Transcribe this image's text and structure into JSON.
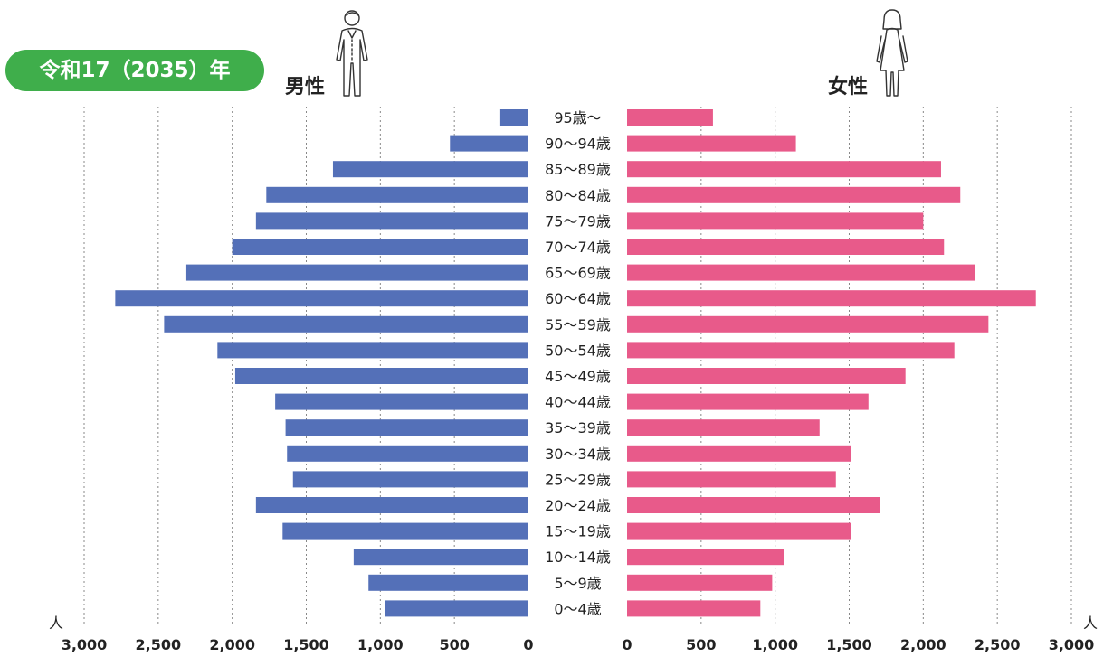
{
  "badge": "令和17（2035）年",
  "male_label": "男性",
  "female_label": "女性",
  "unit_left": "人",
  "unit_right": "人",
  "colors": {
    "male": "#5470b8",
    "female": "#e85a8a",
    "badge": "#3fae4b",
    "grid": "#888888"
  },
  "icons": {
    "male": "man-figure-icon",
    "female": "woman-figure-icon"
  },
  "chart_data": {
    "type": "bar",
    "orientation": "horizontal-population-pyramid",
    "categories": [
      "95歳〜",
      "90〜94歳",
      "85〜89歳",
      "80〜84歳",
      "75〜79歳",
      "70〜74歳",
      "65〜69歳",
      "60〜64歳",
      "55〜59歳",
      "50〜54歳",
      "45〜49歳",
      "40〜44歳",
      "35〜39歳",
      "30〜34歳",
      "25〜29歳",
      "20〜24歳",
      "15〜19歳",
      "10〜14歳",
      "5〜9歳",
      "0〜4歳"
    ],
    "series": [
      {
        "name": "男性",
        "values": [
          190,
          530,
          1320,
          1770,
          1840,
          2000,
          2310,
          2790,
          2460,
          2100,
          1980,
          1710,
          1640,
          1630,
          1590,
          1840,
          1660,
          1180,
          1080,
          970
        ]
      },
      {
        "name": "女性",
        "values": [
          580,
          1140,
          2120,
          2250,
          2000,
          2140,
          2350,
          2760,
          2440,
          2210,
          1880,
          1630,
          1300,
          1510,
          1410,
          1710,
          1510,
          1060,
          980,
          900
        ]
      }
    ],
    "xlim": [
      0,
      3000
    ],
    "ticks": [
      "3,000",
      "2,500",
      "2,000",
      "1,500",
      "1,000",
      "500",
      "0"
    ],
    "tick_values": [
      3000,
      2500,
      2000,
      1500,
      1000,
      500,
      0
    ],
    "grid": true
  }
}
